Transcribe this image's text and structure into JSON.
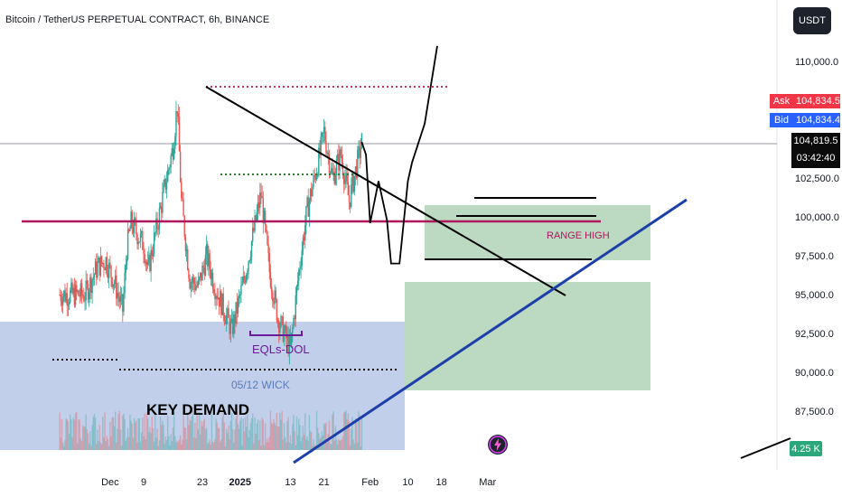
{
  "header": {
    "title": "Bitcoin / TetherUS PERPETUAL CONTRACT, 6h, BINANCE",
    "currency": "USDT"
  },
  "price_scale": {
    "ask_label": "Ask",
    "ask_value": "104,834.5",
    "bid_label": "Bid",
    "bid_value": "104,834.4",
    "last_price": "104,819.5",
    "countdown": "03:42:40",
    "volume_badge": "4.25 K"
  },
  "annotations": {
    "key_demand": "KEY DEMAND",
    "eqls_dol": "EQLs-DOL",
    "wick_label": "05/12 WICK",
    "range_high": "RANGE HIGH"
  },
  "colors": {
    "up": "#26a69a",
    "down": "#ef5350",
    "ask": "#f23645",
    "bid": "#2962ff",
    "range_high": "#b0185e",
    "trendline_blue": "#1c3faa",
    "demand_zone": "#8fa8d8",
    "green_zone": "#8fbf99",
    "eqls": "#6a1b9a"
  },
  "chart_data": {
    "type": "candlestick",
    "symbol": "Bitcoin / TetherUS PERPETUAL CONTRACT",
    "timeframe": "6h",
    "exchange": "BINANCE",
    "x_ticks": [
      "Dec",
      "9",
      "23",
      "2025",
      "13",
      "21",
      "Feb",
      "10",
      "18",
      "Mar"
    ],
    "y_ticks": [
      110000,
      102500,
      100000,
      97500,
      95000,
      92500,
      90000,
      87500
    ],
    "y_tick_labels": [
      "110,000.0",
      "102,500.0",
      "100,000.0",
      "97,500.0",
      "95,000.0",
      "92,500.0",
      "90,000.0",
      "87,500.0"
    ],
    "ylim": [
      84000,
      112000
    ],
    "grid": false,
    "last_price": 104819.5,
    "key_levels": [
      {
        "label": "RANGE HIGH",
        "price": 99700
      },
      {
        "label": "EQLs-DOL",
        "price": 92600
      },
      {
        "label": "05/12 WICK",
        "price": 90100
      }
    ],
    "price_path": [
      {
        "date": "2024-11-25",
        "close": 95000
      },
      {
        "date": "2024-11-28",
        "close": 96800
      },
      {
        "date": "2024-11-30",
        "close": 97200
      },
      {
        "date": "2024-12-02",
        "close": 95800
      },
      {
        "date": "2024-12-04",
        "close": 94000
      },
      {
        "date": "2024-12-05",
        "close": 98000
      },
      {
        "date": "2024-12-06",
        "close": 99600
      },
      {
        "date": "2024-12-09",
        "close": 98200
      },
      {
        "date": "2024-12-10",
        "close": 96500
      },
      {
        "date": "2024-12-13",
        "close": 100500
      },
      {
        "date": "2024-12-16",
        "close": 104500
      },
      {
        "date": "2024-12-17",
        "close": 107200
      },
      {
        "date": "2024-12-18",
        "close": 101000
      },
      {
        "date": "2024-12-20",
        "close": 96000
      },
      {
        "date": "2024-12-22",
        "close": 95500
      },
      {
        "date": "2024-12-24",
        "close": 97500
      },
      {
        "date": "2024-12-26",
        "close": 95500
      },
      {
        "date": "2024-12-30",
        "close": 92700
      },
      {
        "date": "2025-01-02",
        "close": 96000
      },
      {
        "date": "2025-01-06",
        "close": 101500
      },
      {
        "date": "2025-01-08",
        "close": 96500
      },
      {
        "date": "2025-01-10",
        "close": 93500
      },
      {
        "date": "2025-01-13",
        "close": 91500
      },
      {
        "date": "2025-01-15",
        "close": 96500
      },
      {
        "date": "2025-01-17",
        "close": 100500
      },
      {
        "date": "2025-01-20",
        "close": 104000
      },
      {
        "date": "2025-01-21",
        "close": 105500
      },
      {
        "date": "2025-01-23",
        "close": 102500
      },
      {
        "date": "2025-01-25",
        "close": 104000
      },
      {
        "date": "2025-01-27",
        "close": 101000
      },
      {
        "date": "2025-01-28",
        "close": 102300
      },
      {
        "date": "2025-01-30",
        "close": 104820
      }
    ],
    "projection": [
      {
        "date": "2025-01-31",
        "price": 104000
      },
      {
        "date": "2025-02-01",
        "price": 99600
      },
      {
        "date": "2025-02-03",
        "price": 102300
      },
      {
        "date": "2025-02-05",
        "price": 99800
      },
      {
        "date": "2025-02-06",
        "price": 97000
      },
      {
        "date": "2025-02-08",
        "price": 97000
      },
      {
        "date": "2025-02-10",
        "price": 102300
      },
      {
        "date": "2025-02-11",
        "price": 103500
      },
      {
        "date": "2025-02-14",
        "price": 106000
      },
      {
        "date": "2025-02-17",
        "price": 111000
      }
    ]
  }
}
